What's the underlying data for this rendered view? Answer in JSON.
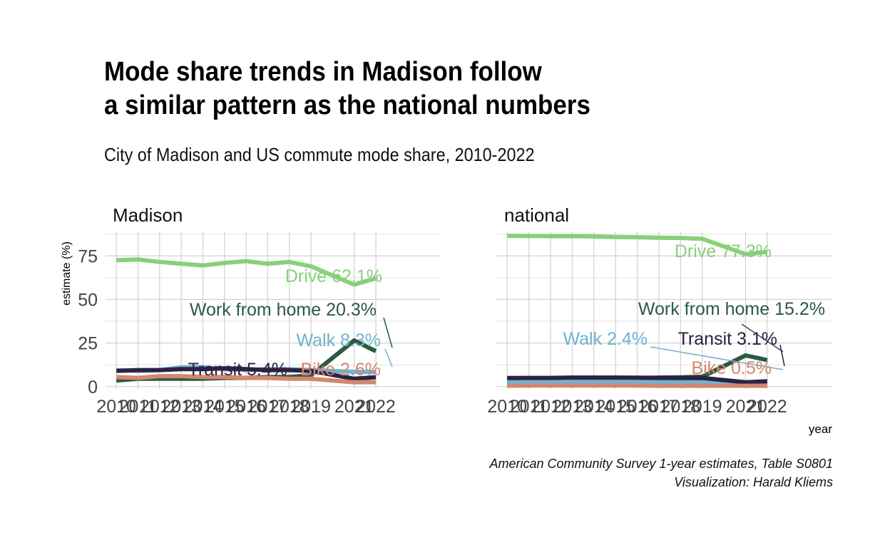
{
  "title_line1": "Mode share trends in Madison follow",
  "title_line2": "a similar pattern as the national numbers",
  "subtitle": "City of Madison and US commute mode share, 2010-2022",
  "caption_line1": "American Community Survey 1-year estimates, Table S0801",
  "caption_line2": "Visualization: Harald Kliems",
  "chart_data": {
    "type": "line",
    "xlabel": "year",
    "ylabel": "estimate (%)",
    "grid": true,
    "legend": "none",
    "x_ticks": [
      2010,
      2011,
      2012,
      2013,
      2014,
      2015,
      2016,
      2017,
      2018,
      2019,
      2021,
      2022
    ],
    "y_ticks": [
      0,
      25,
      50,
      75
    ],
    "ylim": [
      0,
      89
    ],
    "panels": [
      {
        "name": "Madison",
        "series": [
          {
            "name": "Drive",
            "color": "#88d07a",
            "label": "Drive 62.1%",
            "x": [
              2010,
              2011,
              2012,
              2013,
              2014,
              2015,
              2016,
              2017,
              2018,
              2019,
              2021,
              2022
            ],
            "y": [
              72.5,
              73.0,
              71.5,
              70.5,
              69.5,
              71.0,
              72.0,
              70.5,
              71.5,
              69.0,
              58.5,
              62.1
            ]
          },
          {
            "name": "Work from home",
            "color": "#2b5a42",
            "label": "Work from home 20.3%",
            "x": [
              2010,
              2011,
              2012,
              2013,
              2014,
              2015,
              2016,
              2017,
              2018,
              2019,
              2021,
              2022
            ],
            "y": [
              3.5,
              4.5,
              4.5,
              4.5,
              4.5,
              5.0,
              5.0,
              5.5,
              5.5,
              6.5,
              26.5,
              20.3
            ]
          },
          {
            "name": "Walk",
            "color": "#6eb3cf",
            "label": "Walk 8.3%",
            "x": [
              2010,
              2011,
              2012,
              2013,
              2014,
              2015,
              2016,
              2017,
              2018,
              2019,
              2021,
              2022
            ],
            "y": [
              9.5,
              9.0,
              9.5,
              11.0,
              11.0,
              10.0,
              9.5,
              10.0,
              10.0,
              9.5,
              8.5,
              8.3
            ]
          },
          {
            "name": "Transit",
            "color": "#2d2145",
            "label": "Transit 5.4%",
            "x": [
              2010,
              2011,
              2012,
              2013,
              2014,
              2015,
              2016,
              2017,
              2018,
              2019,
              2021,
              2022
            ],
            "y": [
              9.0,
              9.5,
              9.5,
              10.0,
              10.0,
              10.5,
              10.0,
              9.5,
              9.5,
              9.0,
              4.5,
              5.4
            ]
          },
          {
            "name": "Bike",
            "color": "#d4876f",
            "label": "Bike 2.6%",
            "x": [
              2010,
              2011,
              2012,
              2013,
              2014,
              2015,
              2016,
              2017,
              2018,
              2019,
              2021,
              2022
            ],
            "y": [
              5.5,
              5.0,
              6.0,
              6.0,
              5.5,
              5.5,
              5.0,
              5.0,
              4.5,
              4.5,
              2.5,
              2.6
            ]
          }
        ]
      },
      {
        "name": "national",
        "series": [
          {
            "name": "Drive",
            "color": "#88d07a",
            "label": "Drive 77.3%",
            "x": [
              2010,
              2011,
              2012,
              2013,
              2014,
              2015,
              2016,
              2017,
              2018,
              2019,
              2021,
              2022
            ],
            "y": [
              86.5,
              86.4,
              86.3,
              86.3,
              86.2,
              85.8,
              85.7,
              85.4,
              85.3,
              84.8,
              76.0,
              77.3
            ]
          },
          {
            "name": "Work from home",
            "color": "#2b5a42",
            "label": "Work from home 15.2%",
            "x": [
              2010,
              2011,
              2012,
              2013,
              2014,
              2015,
              2016,
              2017,
              2018,
              2019,
              2021,
              2022
            ],
            "y": [
              4.3,
              4.3,
              4.4,
              4.4,
              4.5,
              4.6,
              5.0,
              5.2,
              5.3,
              5.7,
              17.9,
              15.2
            ]
          },
          {
            "name": "Walk",
            "color": "#6eb3cf",
            "label": "Walk 2.4%",
            "x": [
              2010,
              2011,
              2012,
              2013,
              2014,
              2015,
              2016,
              2017,
              2018,
              2019,
              2021,
              2022
            ],
            "y": [
              2.8,
              2.8,
              2.8,
              2.8,
              2.8,
              2.8,
              2.7,
              2.7,
              2.6,
              2.6,
              2.4,
              2.4
            ]
          },
          {
            "name": "Transit",
            "color": "#2d2145",
            "label": "Transit 3.1%",
            "x": [
              2010,
              2011,
              2012,
              2013,
              2014,
              2015,
              2016,
              2017,
              2018,
              2019,
              2021,
              2022
            ],
            "y": [
              4.9,
              5.0,
              5.0,
              5.2,
              5.2,
              5.2,
              5.1,
              5.0,
              4.9,
              5.0,
              2.5,
              3.1
            ]
          },
          {
            "name": "Bike",
            "color": "#d4876f",
            "label": "Bike 0.5%",
            "x": [
              2010,
              2011,
              2012,
              2013,
              2014,
              2015,
              2016,
              2017,
              2018,
              2019,
              2021,
              2022
            ],
            "y": [
              0.5,
              0.6,
              0.6,
              0.6,
              0.6,
              0.6,
              0.6,
              0.5,
              0.5,
              0.5,
              0.5,
              0.5
            ]
          }
        ]
      }
    ]
  }
}
